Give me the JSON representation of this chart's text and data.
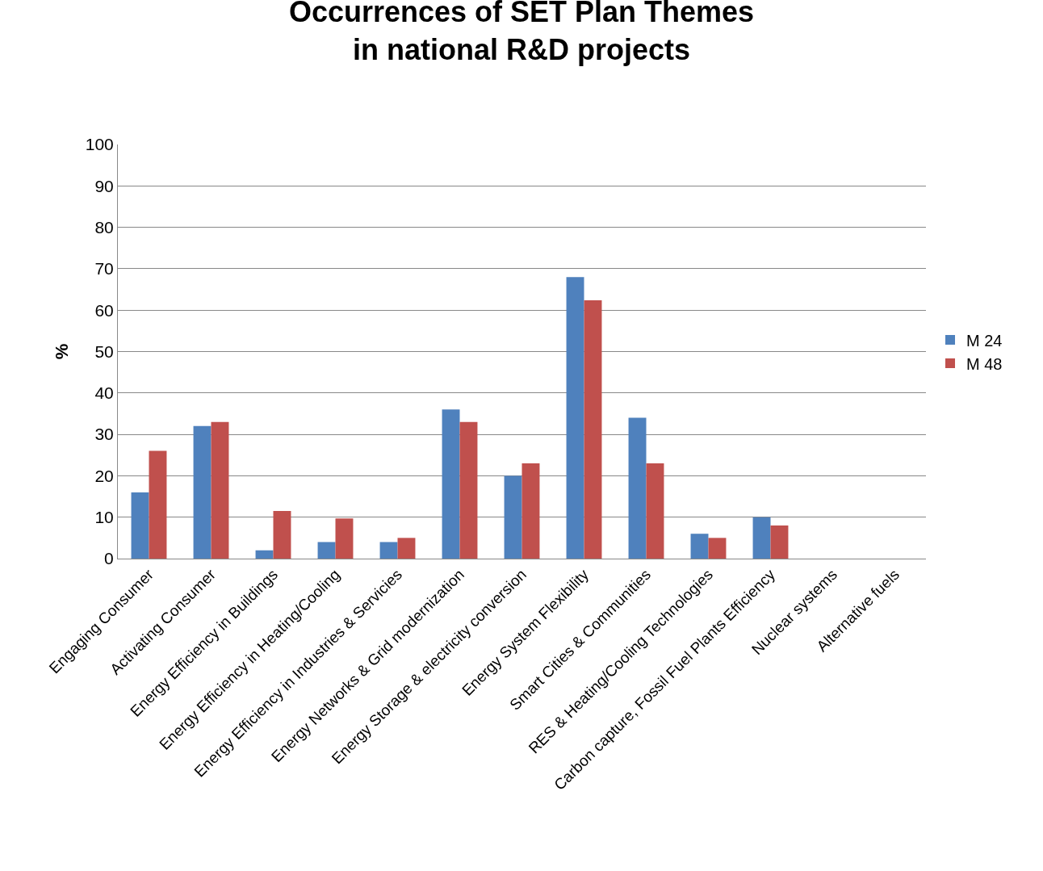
{
  "chart_data": {
    "type": "bar",
    "title": "Occurrences of SET Plan Themes\nin national R&D projects",
    "ylabel": "%",
    "categories": [
      "Engaging Consumer",
      "Activating Consumer",
      "Energy Efficiency in Buildings",
      "Energy Efficiency in Heating/Cooling",
      "Energy Efficiency in Industries & Servicies",
      "Energy Networks & Grid modernization",
      "Energy Storage & electricity conversion",
      "Energy System Flexibility",
      "Smart Cities & Communities",
      "RES & Heating/Cooling Technologies",
      "Carbon capture, Fossil Fuel Plants Efficiency",
      "Nuclear systems",
      "Alternative fuels"
    ],
    "series": [
      {
        "name": "M 24",
        "color": "#4f81bd",
        "values": [
          16,
          32,
          2,
          4,
          4,
          36,
          20,
          68,
          34,
          6,
          10,
          0,
          0
        ]
      },
      {
        "name": "M 48",
        "color": "#c0504d",
        "values": [
          26,
          33,
          11.5,
          9.7,
          5,
          33,
          23,
          62.4,
          23,
          5,
          8,
          0,
          0
        ]
      }
    ],
    "ylim": [
      0,
      100
    ],
    "yticks": [
      0,
      10,
      20,
      30,
      40,
      50,
      60,
      70,
      80,
      90,
      100
    ],
    "grid": "y",
    "legend": "right"
  }
}
